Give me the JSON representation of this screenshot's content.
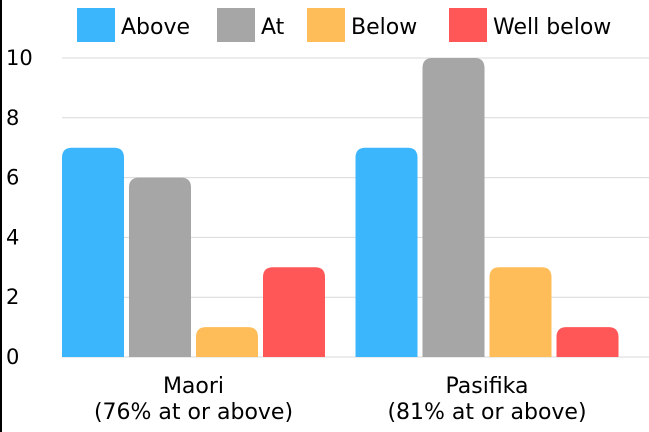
{
  "chart_data": {
    "type": "bar",
    "categories": [
      "Maori\n(76% at or above)",
      "Pasifika\n(81% at or above)"
    ],
    "series": [
      {
        "name": "Above",
        "color": "#3bb5fc",
        "values": [
          7,
          7
        ]
      },
      {
        "name": "At",
        "color": "#a6a6a6",
        "values": [
          6,
          10
        ]
      },
      {
        "name": "Below",
        "color": "#ffbd59",
        "values": [
          1,
          3
        ]
      },
      {
        "name": "Well below",
        "color": "#ff5757",
        "values": [
          3,
          1
        ]
      }
    ],
    "title": "",
    "xlabel": "",
    "ylabel": "",
    "ylim": [
      0,
      10
    ],
    "yticks": [
      0,
      2,
      4,
      6,
      8,
      10
    ],
    "grid": true,
    "legend_position": "top"
  }
}
